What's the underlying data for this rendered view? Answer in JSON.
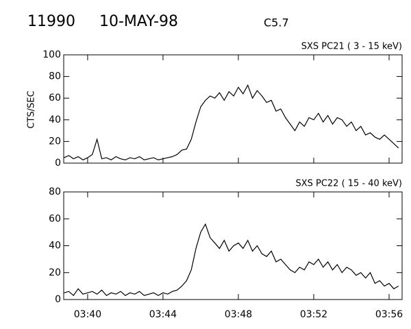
{
  "chart_data": [
    {
      "type": "line",
      "title": "11990",
      "subtitle": "10-MAY-98",
      "annotation": "C5.7",
      "label": "SXS PC21  (  3 - 15 keV)",
      "ylabel": "CTS/SEC",
      "color": "#000000",
      "x": [
        218.75,
        219,
        219.25,
        219.5,
        219.75,
        220,
        220.25,
        220.5,
        220.75,
        221,
        221.25,
        221.5,
        221.75,
        222,
        222.25,
        222.5,
        222.75,
        223,
        223.25,
        223.5,
        223.75,
        224,
        224.25,
        224.5,
        224.75,
        225,
        225.25,
        225.5,
        225.75,
        226,
        226.25,
        226.5,
        226.75,
        227,
        227.25,
        227.5,
        227.75,
        228,
        228.25,
        228.5,
        228.75,
        229,
        229.25,
        229.5,
        229.75,
        230,
        230.25,
        230.5,
        230.75,
        231,
        231.25,
        231.5,
        231.75,
        232,
        232.25,
        232.5,
        232.75,
        233,
        233.25,
        233.5,
        233.75,
        234,
        234.25,
        234.5,
        234.75,
        235,
        235.25,
        235.5,
        235.75,
        236,
        236.25,
        236.5
      ],
      "values": [
        5,
        7,
        4,
        6,
        3,
        5,
        8,
        22,
        4,
        5,
        3,
        6,
        4,
        3,
        5,
        4,
        6,
        3,
        4,
        5,
        3,
        4,
        5,
        6,
        8,
        12,
        13,
        22,
        38,
        52,
        58,
        62,
        60,
        65,
        58,
        66,
        62,
        70,
        64,
        72,
        60,
        67,
        62,
        56,
        58,
        48,
        50,
        42,
        36,
        30,
        38,
        34,
        42,
        40,
        46,
        38,
        44,
        36,
        42,
        40,
        34,
        38,
        30,
        34,
        26,
        28,
        24,
        22,
        26,
        22,
        18,
        14
      ],
      "xlim": [
        218.73,
        236.69
      ],
      "xticks": [
        220,
        224,
        228,
        232,
        236
      ],
      "ylim": [
        0,
        100
      ],
      "yticks": [
        0,
        20,
        40,
        60,
        80,
        100
      ]
    },
    {
      "type": "line",
      "label": "SXS PC22  ( 15 - 40 keV)",
      "color": "#000000",
      "x": [
        218.75,
        219,
        219.25,
        219.5,
        219.75,
        220,
        220.25,
        220.5,
        220.75,
        221,
        221.25,
        221.5,
        221.75,
        222,
        222.25,
        222.5,
        222.75,
        223,
        223.25,
        223.5,
        223.75,
        224,
        224.25,
        224.5,
        224.75,
        225,
        225.25,
        225.5,
        225.75,
        226,
        226.25,
        226.5,
        226.75,
        227,
        227.25,
        227.5,
        227.75,
        228,
        228.25,
        228.5,
        228.75,
        229,
        229.25,
        229.5,
        229.75,
        230,
        230.25,
        230.5,
        230.75,
        231,
        231.25,
        231.5,
        231.75,
        232,
        232.25,
        232.5,
        232.75,
        233,
        233.25,
        233.5,
        233.75,
        234,
        234.25,
        234.5,
        234.75,
        235,
        235.25,
        235.5,
        235.75,
        236,
        236.25,
        236.5
      ],
      "values": [
        5,
        6,
        3,
        8,
        4,
        5,
        6,
        4,
        7,
        3,
        5,
        4,
        6,
        3,
        5,
        4,
        6,
        3,
        4,
        5,
        3,
        5,
        4,
        6,
        7,
        10,
        14,
        22,
        38,
        50,
        56,
        46,
        42,
        38,
        44,
        36,
        40,
        42,
        38,
        44,
        36,
        40,
        34,
        32,
        36,
        28,
        30,
        26,
        22,
        20,
        24,
        22,
        28,
        26,
        30,
        24,
        28,
        22,
        26,
        20,
        24,
        22,
        18,
        20,
        16,
        20,
        12,
        14,
        10,
        12,
        8,
        10
      ],
      "xlim": [
        218.73,
        236.69
      ],
      "xticks": [
        {
          "value": 220,
          "label": "03:40"
        },
        {
          "value": 224,
          "label": "03:44"
        },
        {
          "value": 228,
          "label": "03:48"
        },
        {
          "value": 232,
          "label": "03:52"
        },
        {
          "value": 236,
          "label": "03:56"
        }
      ],
      "ylim": [
        0,
        80
      ],
      "yticks": [
        0,
        20,
        40,
        60,
        80
      ]
    }
  ]
}
